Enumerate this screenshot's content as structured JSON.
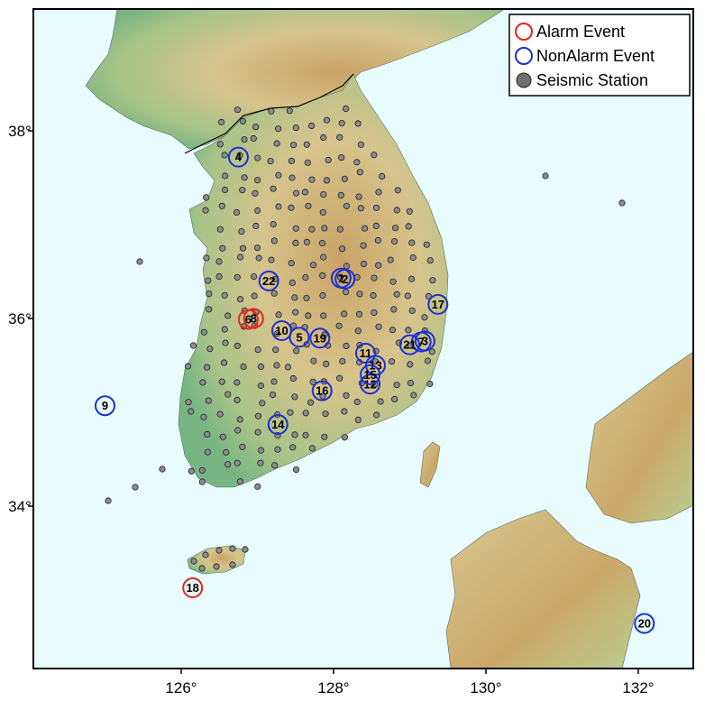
{
  "map": {
    "colors": {
      "sea": "#e8fbfd",
      "land_low": "#7ab783",
      "land_mid": "#d6c48a",
      "land_high": "#c8a465",
      "alarm": "#e8241c",
      "nonalarm": "#1c2fd4",
      "station_fill": "#8c8c8c",
      "station_stroke": "#222222"
    },
    "lon_ticks": [
      "126°",
      "128°",
      "130°",
      "132°"
    ],
    "lat_ticks": [
      "38°",
      "36°",
      "34°"
    ]
  },
  "legend": {
    "items": [
      {
        "label": "Alarm Event",
        "kind": "alarm"
      },
      {
        "label": "NonAlarm Event",
        "kind": "nonalarm"
      },
      {
        "label": "Seismic Station",
        "kind": "station"
      }
    ]
  },
  "events": [
    {
      "id": "1",
      "type": "nonalarm",
      "lon": 128.1,
      "lat": 36.43
    },
    {
      "id": "2",
      "type": "nonalarm",
      "lon": 128.15,
      "lat": 36.42
    },
    {
      "id": "3",
      "type": "nonalarm",
      "lon": 129.2,
      "lat": 35.76
    },
    {
      "id": "4",
      "type": "nonalarm",
      "lon": 126.75,
      "lat": 37.72
    },
    {
      "id": "5",
      "type": "nonalarm",
      "lon": 127.55,
      "lat": 35.8
    },
    {
      "id": "6",
      "type": "alarm",
      "lon": 126.88,
      "lat": 35.99
    },
    {
      "id": "7",
      "type": "nonalarm",
      "lon": 129.15,
      "lat": 35.75
    },
    {
      "id": "8",
      "type": "alarm",
      "lon": 126.95,
      "lat": 36.0
    },
    {
      "id": "9",
      "type": "nonalarm",
      "lon": 125.0,
      "lat": 35.07
    },
    {
      "id": "10",
      "type": "nonalarm",
      "lon": 127.32,
      "lat": 35.87
    },
    {
      "id": "11",
      "type": "nonalarm",
      "lon": 128.42,
      "lat": 35.63
    },
    {
      "id": "12",
      "type": "nonalarm",
      "lon": 128.48,
      "lat": 35.3
    },
    {
      "id": "13",
      "type": "nonalarm",
      "lon": 128.55,
      "lat": 35.5
    },
    {
      "id": "14",
      "type": "nonalarm",
      "lon": 127.27,
      "lat": 34.87
    },
    {
      "id": "15",
      "type": "nonalarm",
      "lon": 128.48,
      "lat": 35.4
    },
    {
      "id": "16",
      "type": "nonalarm",
      "lon": 127.85,
      "lat": 35.23
    },
    {
      "id": "17",
      "type": "nonalarm",
      "lon": 129.37,
      "lat": 36.15
    },
    {
      "id": "18",
      "type": "alarm",
      "lon": 126.15,
      "lat": 33.13
    },
    {
      "id": "19",
      "type": "nonalarm",
      "lon": 127.82,
      "lat": 35.79
    },
    {
      "id": "20",
      "type": "nonalarm",
      "lon": 132.08,
      "lat": 32.75
    },
    {
      "id": "21",
      "type": "nonalarm",
      "lon": 129.0,
      "lat": 35.72
    },
    {
      "id": "22",
      "type": "nonalarm",
      "lon": 127.15,
      "lat": 36.4
    }
  ]
}
